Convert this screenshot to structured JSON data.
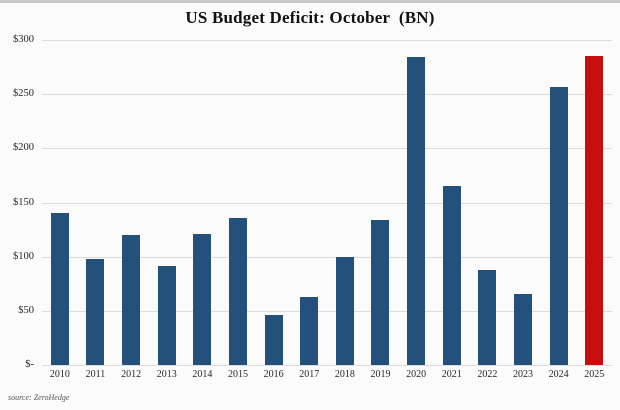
{
  "title": "US Budget Deficit: October  (BN)",
  "source_note": "source: ZeroHedge",
  "colors": {
    "bar": "#23517C",
    "highlight": "#C70E0E",
    "gridline": "#DCDCDC",
    "title_text": "#111111",
    "axis_text": "#262626"
  },
  "chart_data": {
    "type": "bar",
    "title": "US Budget Deficit: October  (BN)",
    "categories": [
      "2010",
      "2011",
      "2012",
      "2013",
      "2014",
      "2015",
      "2016",
      "2017",
      "2018",
      "2019",
      "2020",
      "2021",
      "2022",
      "2023",
      "2024",
      "2025"
    ],
    "values": [
      140,
      98,
      120,
      91,
      121,
      136,
      46,
      63,
      100,
      134,
      284,
      165,
      88,
      66,
      257,
      285
    ],
    "highlight_category": "2025",
    "xlabel": "",
    "ylabel": "",
    "ylim": [
      0,
      300
    ],
    "y_tick_labels": [
      "$300",
      "$250",
      "$200",
      "$150",
      "$100",
      "$50",
      "$-"
    ],
    "y_tick_values": [
      300,
      250,
      200,
      150,
      100,
      50,
      0
    ],
    "grid": "horizontal",
    "legend": "none",
    "annotation": "source: ZeroHedge"
  }
}
